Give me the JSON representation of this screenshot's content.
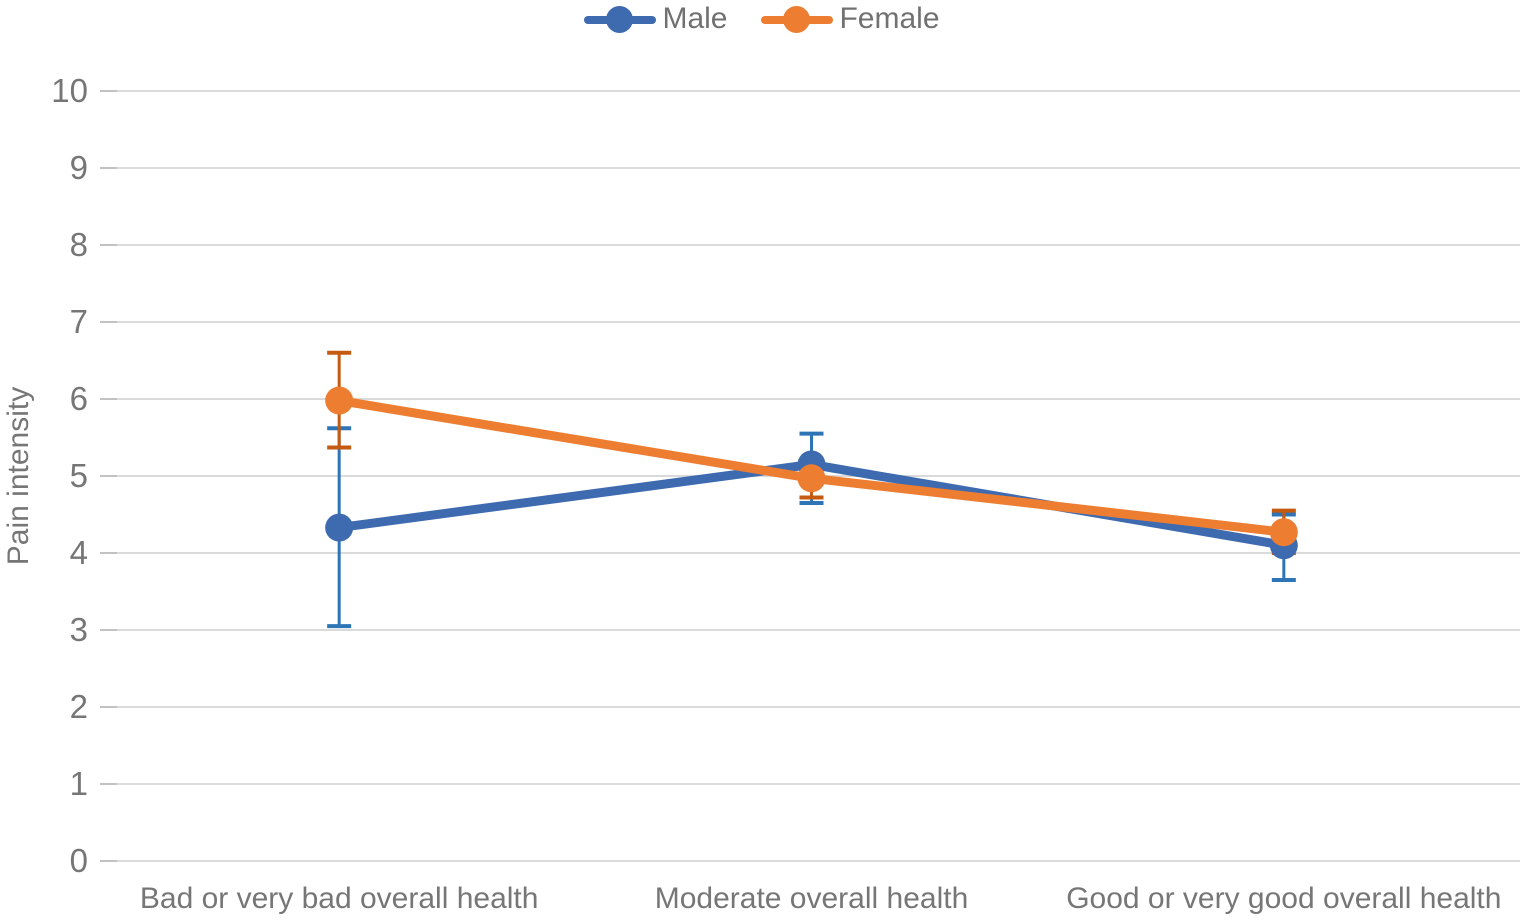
{
  "chart_data": {
    "type": "line",
    "title": "",
    "ylabel": "Pain intensity",
    "xlabel": "",
    "ylim": [
      0,
      10
    ],
    "ytick_step": 1,
    "grid": true,
    "legend_position": "top-center",
    "categories": [
      "Bad or very bad overall health",
      "Moderate overall health",
      "Good or very good overall health"
    ],
    "series": [
      {
        "name": "Male",
        "color": "#3E6AB0",
        "error_color": "#2E75B6",
        "points": [
          {
            "value": 4.33,
            "err_low": 3.05,
            "err_high": 5.62
          },
          {
            "value": 5.15,
            "err_low": 4.65,
            "err_high": 5.55
          },
          {
            "value": 4.1,
            "err_low": 3.65,
            "err_high": 4.5
          }
        ]
      },
      {
        "name": "Female",
        "color": "#ED7D31",
        "error_color": "#C55A11",
        "points": [
          {
            "value": 5.98,
            "err_low": 5.37,
            "err_high": 6.6
          },
          {
            "value": 4.97,
            "err_low": 4.72,
            "err_high": 5.22
          },
          {
            "value": 4.27,
            "err_low": 4.0,
            "err_high": 4.55
          }
        ]
      }
    ],
    "yticks": [
      0,
      1,
      2,
      3,
      4,
      5,
      6,
      7,
      8,
      9,
      10
    ],
    "colors": {
      "gridline": "#DADADA",
      "tick": "#C2C2C2",
      "axis_text": "#767676",
      "legend_text": "#717171"
    }
  }
}
